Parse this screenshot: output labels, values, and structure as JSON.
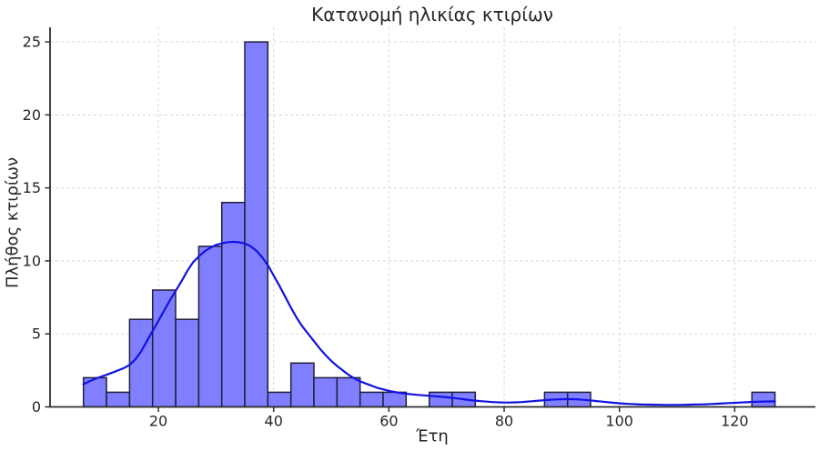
{
  "style": {
    "bar_fill": "#7f7fff",
    "bar_edge": "#20203a",
    "kde_line": "#1212e0",
    "grid": "#d8d8d8",
    "spine": "#2f2f2f",
    "text": "#262626",
    "background": "#ffffff"
  },
  "chart_data": {
    "type": "bar",
    "subtype": "histogram_with_kde",
    "title": "Κατανομή ηλικίας κτιρίων",
    "xlabel": "Έτη",
    "ylabel": "Πλήθος κτιρίων",
    "n_bins": 30,
    "bin_width": 4,
    "bin_edges": [
      7,
      11,
      15,
      19,
      23,
      27,
      31,
      35,
      39,
      43,
      47,
      51,
      55,
      59,
      63,
      67,
      71,
      75,
      79,
      83,
      87,
      91,
      95,
      99,
      103,
      107,
      111,
      115,
      119,
      123,
      127
    ],
    "counts": [
      2,
      1,
      6,
      8,
      6,
      11,
      14,
      25,
      1,
      3,
      2,
      2,
      1,
      1,
      0,
      1,
      1,
      0,
      0,
      0,
      1,
      1,
      0,
      0,
      0,
      0,
      0,
      0,
      0,
      1
    ],
    "kde_points": [
      [
        7,
        1.55
      ],
      [
        8,
        1.75
      ],
      [
        9,
        1.92
      ],
      [
        10,
        2.06
      ],
      [
        11,
        2.2
      ],
      [
        12,
        2.35
      ],
      [
        13,
        2.5
      ],
      [
        14,
        2.66
      ],
      [
        15,
        2.88
      ],
      [
        16,
        3.25
      ],
      [
        17,
        3.8
      ],
      [
        18,
        4.5
      ],
      [
        19,
        5.2
      ],
      [
        20,
        5.9
      ],
      [
        21,
        6.6
      ],
      [
        22,
        7.3
      ],
      [
        23,
        7.95
      ],
      [
        24,
        8.6
      ],
      [
        25,
        9.3
      ],
      [
        26,
        9.9
      ],
      [
        27,
        10.3
      ],
      [
        28,
        10.65
      ],
      [
        29,
        10.9
      ],
      [
        30,
        11.1
      ],
      [
        31,
        11.2
      ],
      [
        32,
        11.28
      ],
      [
        33,
        11.3
      ],
      [
        34,
        11.28
      ],
      [
        35,
        11.2
      ],
      [
        36,
        11.0
      ],
      [
        37,
        10.7
      ],
      [
        38,
        10.25
      ],
      [
        39,
        9.7
      ],
      [
        40,
        9.0
      ],
      [
        41,
        8.3
      ],
      [
        42,
        7.55
      ],
      [
        43,
        6.8
      ],
      [
        44,
        6.1
      ],
      [
        45,
        5.5
      ],
      [
        46,
        5.0
      ],
      [
        47,
        4.5
      ],
      [
        48,
        4.0
      ],
      [
        49,
        3.55
      ],
      [
        50,
        3.15
      ],
      [
        51,
        2.8
      ],
      [
        52,
        2.5
      ],
      [
        53,
        2.2
      ],
      [
        54,
        1.95
      ],
      [
        55,
        1.75
      ],
      [
        56,
        1.6
      ],
      [
        57,
        1.45
      ],
      [
        58,
        1.3
      ],
      [
        59,
        1.2
      ],
      [
        60,
        1.1
      ],
      [
        61,
        1.02
      ],
      [
        62,
        0.95
      ],
      [
        63,
        0.9
      ],
      [
        64,
        0.86
      ],
      [
        65,
        0.82
      ],
      [
        66,
        0.79
      ],
      [
        67,
        0.76
      ],
      [
        68,
        0.73
      ],
      [
        69,
        0.7
      ],
      [
        70,
        0.66
      ],
      [
        71,
        0.62
      ],
      [
        72,
        0.57
      ],
      [
        73,
        0.52
      ],
      [
        74,
        0.47
      ],
      [
        75,
        0.43
      ],
      [
        76,
        0.39
      ],
      [
        77,
        0.36
      ],
      [
        78,
        0.33
      ],
      [
        79,
        0.31
      ],
      [
        80,
        0.3
      ],
      [
        81,
        0.3
      ],
      [
        82,
        0.31
      ],
      [
        83,
        0.33
      ],
      [
        84,
        0.36
      ],
      [
        85,
        0.39
      ],
      [
        86,
        0.43
      ],
      [
        87,
        0.46
      ],
      [
        88,
        0.49
      ],
      [
        89,
        0.51
      ],
      [
        90,
        0.53
      ],
      [
        91,
        0.535
      ],
      [
        92,
        0.53
      ],
      [
        93,
        0.51
      ],
      [
        94,
        0.48
      ],
      [
        95,
        0.44
      ],
      [
        96,
        0.4
      ],
      [
        97,
        0.36
      ],
      [
        98,
        0.32
      ],
      [
        99,
        0.28
      ],
      [
        100,
        0.25
      ],
      [
        101,
        0.22
      ],
      [
        102,
        0.2
      ],
      [
        103,
        0.18
      ],
      [
        104,
        0.165
      ],
      [
        105,
        0.155
      ],
      [
        106,
        0.15
      ],
      [
        107,
        0.145
      ],
      [
        108,
        0.14
      ],
      [
        109,
        0.14
      ],
      [
        110,
        0.14
      ],
      [
        111,
        0.145
      ],
      [
        112,
        0.15
      ],
      [
        113,
        0.16
      ],
      [
        114,
        0.17
      ],
      [
        115,
        0.18
      ],
      [
        116,
        0.2
      ],
      [
        117,
        0.22
      ],
      [
        118,
        0.24
      ],
      [
        119,
        0.26
      ],
      [
        120,
        0.28
      ],
      [
        121,
        0.3
      ],
      [
        122,
        0.32
      ],
      [
        123,
        0.34
      ],
      [
        124,
        0.355
      ],
      [
        125,
        0.37
      ],
      [
        126,
        0.375
      ],
      [
        127,
        0.38
      ]
    ],
    "x_ticks": [
      20,
      40,
      60,
      80,
      100,
      120
    ],
    "y_ticks": [
      0,
      5,
      10,
      15,
      20,
      25
    ],
    "xlim": [
      1.2,
      134
    ],
    "ylim": [
      0,
      26
    ],
    "grid": true,
    "legend_position": "none"
  }
}
